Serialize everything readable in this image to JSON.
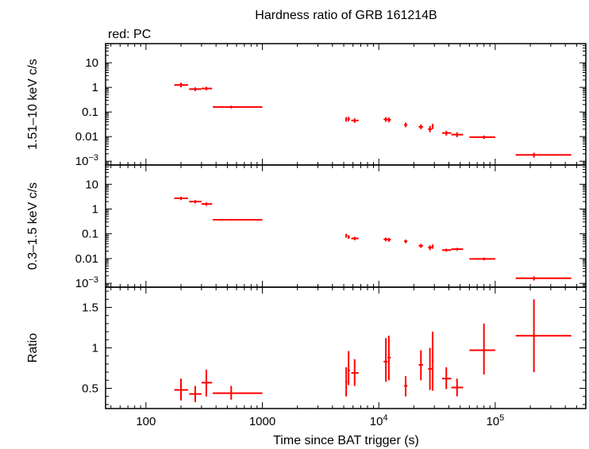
{
  "chart_data": [
    {
      "type": "scatter",
      "title": "Hardness ratio of GRB 161214B",
      "subtitle": "red: PC",
      "ylabel": "1.51–10 keV c/s",
      "yscale": "log",
      "ylim": [
        0.0007,
        60
      ],
      "yticks": [
        {
          "v": 10,
          "label": "10"
        },
        {
          "v": 1,
          "label": "1"
        },
        {
          "v": 0.1,
          "label": "0.1"
        },
        {
          "v": 0.01,
          "label": "0.01"
        },
        {
          "v": 0.001,
          "label": "10",
          "sup": "−3"
        }
      ],
      "color": "#ff0000",
      "points": [
        {
          "x": 200,
          "xlo": 175,
          "xhi": 230,
          "y": 1.25,
          "ylo": 1.0,
          "yhi": 1.55
        },
        {
          "x": 265,
          "xlo": 235,
          "xhi": 300,
          "y": 0.85,
          "ylo": 0.7,
          "yhi": 1.0
        },
        {
          "x": 330,
          "xlo": 300,
          "xhi": 370,
          "y": 0.9,
          "ylo": 0.75,
          "yhi": 1.05
        },
        {
          "x": 540,
          "xlo": 375,
          "xhi": 1000,
          "y": 0.16,
          "ylo": 0.14,
          "yhi": 0.18
        },
        {
          "x": 5250,
          "xlo": 5150,
          "xhi": 5350,
          "y": 0.05,
          "ylo": 0.04,
          "yhi": 0.062
        },
        {
          "x": 5500,
          "xlo": 5400,
          "xhi": 5650,
          "y": 0.052,
          "ylo": 0.042,
          "yhi": 0.064
        },
        {
          "x": 6200,
          "xlo": 5800,
          "xhi": 6700,
          "y": 0.045,
          "ylo": 0.036,
          "yhi": 0.055
        },
        {
          "x": 11500,
          "xlo": 11000,
          "xhi": 11900,
          "y": 0.05,
          "ylo": 0.04,
          "yhi": 0.062
        },
        {
          "x": 12200,
          "xlo": 11900,
          "xhi": 12700,
          "y": 0.048,
          "ylo": 0.038,
          "yhi": 0.06
        },
        {
          "x": 17000,
          "xlo": 16500,
          "xhi": 17600,
          "y": 0.03,
          "ylo": 0.024,
          "yhi": 0.037
        },
        {
          "x": 23000,
          "xlo": 22000,
          "xhi": 24000,
          "y": 0.025,
          "ylo": 0.02,
          "yhi": 0.031
        },
        {
          "x": 27500,
          "xlo": 26500,
          "xhi": 28500,
          "y": 0.02,
          "ylo": 0.015,
          "yhi": 0.027
        },
        {
          "x": 29000,
          "xlo": 28500,
          "xhi": 29600,
          "y": 0.026,
          "ylo": 0.02,
          "yhi": 0.033
        },
        {
          "x": 38000,
          "xlo": 35000,
          "xhi": 42000,
          "y": 0.014,
          "ylo": 0.011,
          "yhi": 0.017
        },
        {
          "x": 47000,
          "xlo": 42000,
          "xhi": 53000,
          "y": 0.012,
          "ylo": 0.0095,
          "yhi": 0.015
        },
        {
          "x": 80000,
          "xlo": 60000,
          "xhi": 100000,
          "y": 0.0095,
          "ylo": 0.008,
          "yhi": 0.011
        },
        {
          "x": 215000,
          "xlo": 150000,
          "xhi": 450000,
          "y": 0.0018,
          "ylo": 0.0014,
          "yhi": 0.0022
        }
      ]
    },
    {
      "type": "scatter",
      "ylabel": "0.3–1.5 keV c/s",
      "yscale": "log",
      "ylim": [
        0.0007,
        60
      ],
      "yticks": [
        {
          "v": 10,
          "label": "10"
        },
        {
          "v": 1,
          "label": "1"
        },
        {
          "v": 0.1,
          "label": "0.1"
        },
        {
          "v": 0.01,
          "label": "0.01"
        },
        {
          "v": 0.001,
          "label": "10",
          "sup": "−3"
        }
      ],
      "color": "#ff0000",
      "points": [
        {
          "x": 200,
          "xlo": 175,
          "xhi": 230,
          "y": 2.7,
          "ylo": 2.3,
          "yhi": 3.1
        },
        {
          "x": 265,
          "xlo": 235,
          "xhi": 300,
          "y": 2.0,
          "ylo": 1.7,
          "yhi": 2.3
        },
        {
          "x": 330,
          "xlo": 300,
          "xhi": 370,
          "y": 1.6,
          "ylo": 1.35,
          "yhi": 1.85
        },
        {
          "x": 540,
          "xlo": 375,
          "xhi": 1000,
          "y": 0.37,
          "ylo": 0.34,
          "yhi": 0.4
        },
        {
          "x": 5250,
          "xlo": 5150,
          "xhi": 5350,
          "y": 0.085,
          "ylo": 0.07,
          "yhi": 0.1
        },
        {
          "x": 5500,
          "xlo": 5400,
          "xhi": 5650,
          "y": 0.075,
          "ylo": 0.063,
          "yhi": 0.088
        },
        {
          "x": 6200,
          "xlo": 5800,
          "xhi": 6700,
          "y": 0.065,
          "ylo": 0.055,
          "yhi": 0.076
        },
        {
          "x": 11500,
          "xlo": 11000,
          "xhi": 11900,
          "y": 0.06,
          "ylo": 0.05,
          "yhi": 0.07
        },
        {
          "x": 12200,
          "xlo": 11900,
          "xhi": 12700,
          "y": 0.058,
          "ylo": 0.048,
          "yhi": 0.068
        },
        {
          "x": 17000,
          "xlo": 16500,
          "xhi": 17600,
          "y": 0.05,
          "ylo": 0.042,
          "yhi": 0.058
        },
        {
          "x": 23000,
          "xlo": 22000,
          "xhi": 24000,
          "y": 0.033,
          "ylo": 0.027,
          "yhi": 0.039
        },
        {
          "x": 27500,
          "xlo": 26500,
          "xhi": 28500,
          "y": 0.028,
          "ylo": 0.022,
          "yhi": 0.034
        },
        {
          "x": 29000,
          "xlo": 28500,
          "xhi": 29600,
          "y": 0.031,
          "ylo": 0.025,
          "yhi": 0.037
        },
        {
          "x": 38000,
          "xlo": 35000,
          "xhi": 42000,
          "y": 0.022,
          "ylo": 0.019,
          "yhi": 0.025
        },
        {
          "x": 47000,
          "xlo": 42000,
          "xhi": 53000,
          "y": 0.024,
          "ylo": 0.021,
          "yhi": 0.027
        },
        {
          "x": 80000,
          "xlo": 60000,
          "xhi": 100000,
          "y": 0.0097,
          "ylo": 0.0085,
          "yhi": 0.011
        },
        {
          "x": 215000,
          "xlo": 150000,
          "xhi": 450000,
          "y": 0.0016,
          "ylo": 0.0013,
          "yhi": 0.0019
        }
      ]
    },
    {
      "type": "scatter",
      "ylabel": "Ratio",
      "yscale": "linear",
      "ylim": [
        0.25,
        1.75
      ],
      "yticks": [
        {
          "v": 1.5,
          "label": "1.5"
        },
        {
          "v": 1,
          "label": "1"
        },
        {
          "v": 0.5,
          "label": "0.5"
        }
      ],
      "xlabel": "Time since BAT trigger (s)",
      "xscale": "log",
      "xlim": [
        45,
        600000
      ],
      "xticks": [
        {
          "v": 100,
          "label": "100"
        },
        {
          "v": 1000,
          "label": "1000"
        },
        {
          "v": 10000,
          "label": "10",
          "sup": "4"
        },
        {
          "v": 100000,
          "label": "10",
          "sup": "5"
        }
      ],
      "color": "#ff0000",
      "points": [
        {
          "x": 200,
          "xlo": 175,
          "xhi": 230,
          "y": 0.48,
          "ylo": 0.35,
          "yhi": 0.62
        },
        {
          "x": 265,
          "xlo": 235,
          "xhi": 300,
          "y": 0.43,
          "ylo": 0.33,
          "yhi": 0.53
        },
        {
          "x": 330,
          "xlo": 300,
          "xhi": 370,
          "y": 0.57,
          "ylo": 0.4,
          "yhi": 0.73
        },
        {
          "x": 540,
          "xlo": 375,
          "xhi": 1000,
          "y": 0.44,
          "ylo": 0.36,
          "yhi": 0.53
        },
        {
          "x": 5250,
          "xlo": 5150,
          "xhi": 5350,
          "y": 0.58,
          "ylo": 0.4,
          "yhi": 0.76
        },
        {
          "x": 5500,
          "xlo": 5400,
          "xhi": 5650,
          "y": 0.72,
          "ylo": 0.54,
          "yhi": 0.96
        },
        {
          "x": 6200,
          "xlo": 5800,
          "xhi": 6700,
          "y": 0.69,
          "ylo": 0.53,
          "yhi": 0.86
        },
        {
          "x": 11500,
          "xlo": 11000,
          "xhi": 11900,
          "y": 0.83,
          "ylo": 0.58,
          "yhi": 1.12
        },
        {
          "x": 12200,
          "xlo": 11900,
          "xhi": 12700,
          "y": 0.88,
          "ylo": 0.6,
          "yhi": 1.15
        },
        {
          "x": 17000,
          "xlo": 16500,
          "xhi": 17600,
          "y": 0.53,
          "ylo": 0.4,
          "yhi": 0.65
        },
        {
          "x": 23000,
          "xlo": 22000,
          "xhi": 24000,
          "y": 0.79,
          "ylo": 0.6,
          "yhi": 0.97
        },
        {
          "x": 27500,
          "xlo": 26500,
          "xhi": 28500,
          "y": 0.74,
          "ylo": 0.48,
          "yhi": 1.0
        },
        {
          "x": 29000,
          "xlo": 28500,
          "xhi": 29600,
          "y": 0.84,
          "ylo": 0.47,
          "yhi": 1.2
        },
        {
          "x": 38000,
          "xlo": 35000,
          "xhi": 42000,
          "y": 0.62,
          "ylo": 0.49,
          "yhi": 0.76
        },
        {
          "x": 47000,
          "xlo": 42000,
          "xhi": 53000,
          "y": 0.51,
          "ylo": 0.4,
          "yhi": 0.62
        },
        {
          "x": 80000,
          "xlo": 60000,
          "xhi": 100000,
          "y": 0.97,
          "ylo": 0.67,
          "yhi": 1.3
        },
        {
          "x": 215000,
          "xlo": 150000,
          "xhi": 450000,
          "y": 1.15,
          "ylo": 0.7,
          "yhi": 1.6
        }
      ]
    }
  ]
}
